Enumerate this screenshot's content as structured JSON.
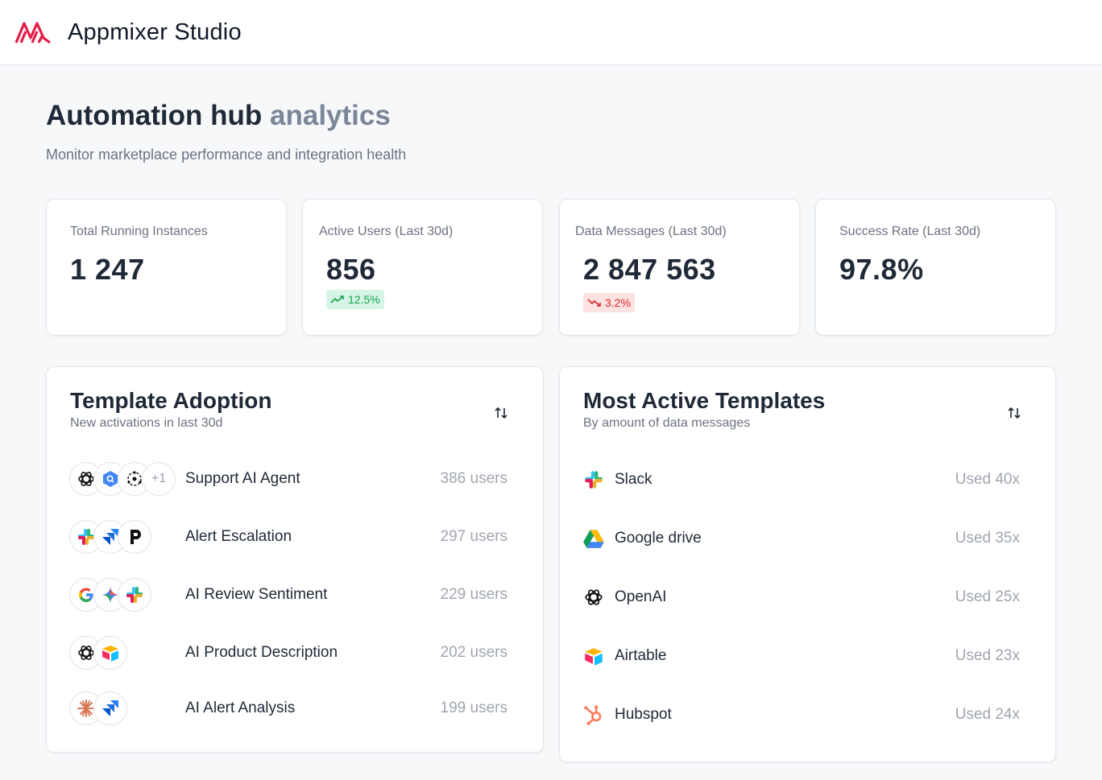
{
  "header": {
    "app_title": "Appmixer Studio",
    "brand_color": "#e11d48"
  },
  "page": {
    "title_main": "Automation hub",
    "title_accent": "analytics",
    "subtitle": "Monitor marketplace performance and integration health"
  },
  "stats": [
    {
      "label": "Total Running Instances",
      "value": "1 247"
    },
    {
      "label": "Active Users (Last 30d)",
      "value": "856",
      "delta": "12.5%",
      "trend": "up"
    },
    {
      "label": "Data Messages (Last 30d)",
      "value": "2 847 563",
      "delta": "3.2%",
      "trend": "down"
    },
    {
      "label": "Success Rate (Last 30d)",
      "value": "97.8%"
    }
  ],
  "template_adoption": {
    "title": "Template Adoption",
    "subtitle": "New activations in last 30d",
    "rows": [
      {
        "name": "Support AI Agent",
        "count": "386 users",
        "icons": [
          "openai-icon",
          "google-cloud-icon",
          "ai-network-icon"
        ],
        "more": "+1"
      },
      {
        "name": "Alert Escalation",
        "count": "297 users",
        "icons": [
          "slack-icon",
          "jira-icon",
          "pagerduty-icon"
        ]
      },
      {
        "name": "AI Review Sentiment",
        "count": "229 users",
        "icons": [
          "google-icon",
          "gemini-icon",
          "slack-icon"
        ]
      },
      {
        "name": "AI Product Description",
        "count": "202 users",
        "icons": [
          "openai-icon",
          "airtable-icon"
        ]
      },
      {
        "name": "AI Alert Analysis",
        "count": "199 users",
        "icons": [
          "claude-icon",
          "jira-icon"
        ]
      }
    ]
  },
  "most_active": {
    "title": "Most Active Templates",
    "subtitle": "By amount of data messages",
    "rows": [
      {
        "name": "Slack",
        "count": "Used 40x",
        "icon": "slack-icon"
      },
      {
        "name": "Google drive",
        "count": "Used 35x",
        "icon": "google-drive-icon"
      },
      {
        "name": "OpenAI",
        "count": "Used 25x",
        "icon": "openai-icon"
      },
      {
        "name": "Airtable",
        "count": "Used 23x",
        "icon": "airtable-icon"
      },
      {
        "name": "Hubspot",
        "count": "Used 24x",
        "icon": "hubspot-icon"
      }
    ]
  }
}
